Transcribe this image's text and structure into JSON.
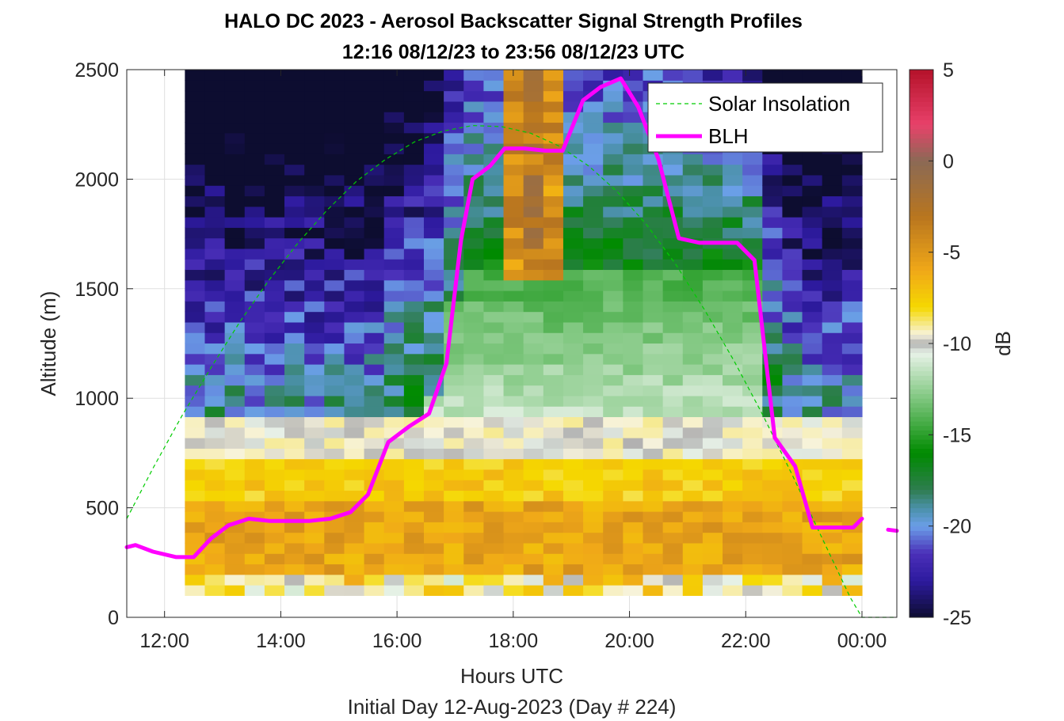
{
  "chart_data": {
    "type": "heatmap",
    "title": "HALO DC 2023 - Aerosol Backscatter Signal Strength Profiles",
    "subtitle": "12:16 08/12/23 to 23:56 08/12/23  UTC",
    "xlabel": "Hours UTC",
    "xlabel_secondary": "Initial Day 12-Aug-2023 (Day # 224)",
    "ylabel": "Altitude (m)",
    "colorbar_label": "dB",
    "xlim_hours": [
      11.35,
      24.6
    ],
    "ylim": [
      0,
      2500
    ],
    "x_ticks": [
      {
        "value": 12,
        "label": "12:00"
      },
      {
        "value": 14,
        "label": "14:00"
      },
      {
        "value": 16,
        "label": "16:00"
      },
      {
        "value": 18,
        "label": "18:00"
      },
      {
        "value": 20,
        "label": "20:00"
      },
      {
        "value": 22,
        "label": "22:00"
      },
      {
        "value": 24,
        "label": "00:00"
      }
    ],
    "y_ticks": [
      0,
      500,
      1000,
      1500,
      2000,
      2500
    ],
    "colorbar_range": [
      -25,
      5
    ],
    "colorbar_ticks": [
      5,
      0,
      -5,
      -10,
      -15,
      -20,
      -25
    ],
    "colormap_stops": [
      {
        "value": 5,
        "color": "#b5122a"
      },
      {
        "value": 2,
        "color": "#e8416a"
      },
      {
        "value": 0,
        "color": "#8b6a55"
      },
      {
        "value": -3,
        "color": "#b8751f"
      },
      {
        "value": -6,
        "color": "#f0a818"
      },
      {
        "value": -8,
        "color": "#f5d800"
      },
      {
        "value": -9.5,
        "color": "#f7f3dc"
      },
      {
        "value": -10,
        "color": "#b0b0b0"
      },
      {
        "value": -10.5,
        "color": "#e8f2e8"
      },
      {
        "value": -13,
        "color": "#7fc77f"
      },
      {
        "value": -16,
        "color": "#008a00"
      },
      {
        "value": -18,
        "color": "#2e7d4f"
      },
      {
        "value": -19,
        "color": "#4a90a8"
      },
      {
        "value": -20,
        "color": "#6b9fe8"
      },
      {
        "value": -21.5,
        "color": "#4a2fb8"
      },
      {
        "value": -23,
        "color": "#2d1a9e"
      },
      {
        "value": -25,
        "color": "#0d0d30"
      }
    ],
    "heatmap": {
      "time_start": 12.35,
      "time_end": 24.0,
      "alt_start": 100,
      "alt_end": 2500,
      "n_time": 34,
      "n_alt": 50,
      "model": "estimated backscatter: warm aerosol layer below boundary, green free troposphere, strong cloud signal near 18:00-19:00"
    },
    "series": [
      {
        "name": "Solar Insolation",
        "style": "dashed",
        "color": "#00cc00",
        "x": [
          11.35,
          11.8,
          12.3,
          12.8,
          13.3,
          13.8,
          14.3,
          14.8,
          15.3,
          15.8,
          16.3,
          16.8,
          17.3,
          17.8,
          18.3,
          18.8,
          19.3,
          19.8,
          20.3,
          20.8,
          21.3,
          21.8,
          22.3,
          22.8,
          23.3,
          23.8,
          24.0,
          24.2,
          24.6
        ],
        "y": [
          450,
          680,
          920,
          1140,
          1350,
          1540,
          1710,
          1860,
          1990,
          2090,
          2170,
          2220,
          2245,
          2240,
          2210,
          2150,
          2060,
          1940,
          1790,
          1610,
          1400,
          1170,
          920,
          650,
          370,
          90,
          0,
          0,
          0
        ]
      },
      {
        "name": "BLH",
        "style": "solid",
        "color": "#ff00ff",
        "segments": [
          {
            "x": [
              11.35,
              11.5,
              11.8,
              12.2,
              12.5,
              12.8,
              13.1,
              13.45,
              13.8,
              14.15,
              14.5,
              14.85,
              15.2,
              15.5,
              15.85,
              16.2,
              16.55,
              16.85,
              17.1,
              17.3,
              17.6,
              17.85,
              18.2,
              18.55,
              18.85,
              19.2,
              19.5,
              19.85,
              20.15,
              20.5,
              20.85,
              21.2,
              21.5,
              21.85,
              22.15,
              22.5,
              22.85,
              23.15,
              23.5,
              23.85,
              24.0
            ],
            "y": [
              320,
              330,
              300,
              275,
              275,
              360,
              420,
              450,
              440,
              440,
              440,
              450,
              480,
              560,
              800,
              870,
              930,
              1160,
              1720,
              2000,
              2060,
              2140,
              2140,
              2130,
              2130,
              2360,
              2420,
              2460,
              2330,
              2090,
              1730,
              1710,
              1710,
              1710,
              1630,
              820,
              690,
              410,
              410,
              410,
              450
            ]
          },
          {
            "x": [
              24.45,
              24.6
            ],
            "y": [
              400,
              395
            ]
          }
        ]
      }
    ],
    "legend": {
      "placement": "top-right",
      "entries": [
        "Solar Insolation",
        "BLH"
      ]
    },
    "grid": true
  }
}
